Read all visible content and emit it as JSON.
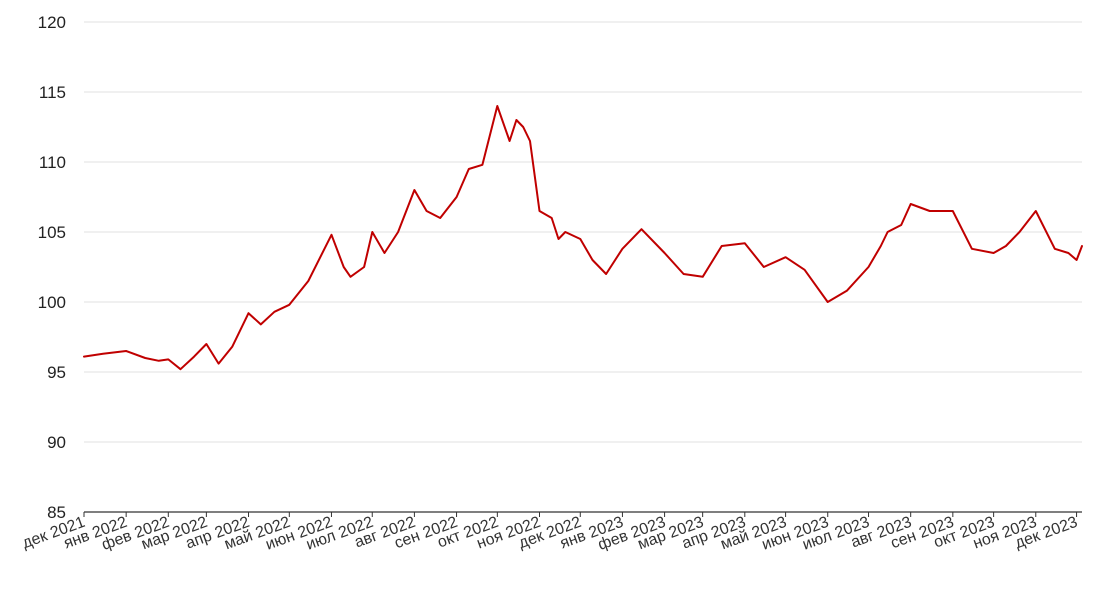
{
  "chart_data": {
    "type": "line",
    "title": "",
    "xlabel": "",
    "ylabel": "",
    "ylim": [
      85,
      120
    ],
    "y_ticks": [
      85,
      90,
      95,
      100,
      105,
      110,
      115,
      120
    ],
    "x_tick_labels": [
      "дек 2021",
      "янв 2022",
      "фев 2022",
      "мар 2022",
      "апр 2022",
      "май 2022",
      "июн 2022",
      "июл 2022",
      "авг 2022",
      "сен 2022",
      "окт 2022",
      "ноя 2022",
      "дек 2022",
      "янв 2023",
      "фев 2023",
      "мар 2023",
      "апр 2023",
      "май 2023",
      "июн 2023",
      "июл 2023",
      "авг 2023",
      "сен 2023",
      "окт 2023",
      "ноя 2023",
      "дек 2023"
    ],
    "grid": true,
    "legend": "none",
    "line_color": "#c00000",
    "series": [
      {
        "x": [
          "2021-12-01",
          "2021-12-15",
          "2022-01-01",
          "2022-01-15",
          "2022-01-25",
          "2022-02-01",
          "2022-02-10",
          "2022-02-20",
          "2022-03-01",
          "2022-03-10",
          "2022-03-20",
          "2022-04-01",
          "2022-04-10",
          "2022-04-20",
          "2022-05-01",
          "2022-05-15",
          "2022-06-01",
          "2022-06-10",
          "2022-06-15",
          "2022-06-25",
          "2022-07-01",
          "2022-07-10",
          "2022-07-20",
          "2022-08-01",
          "2022-08-10",
          "2022-08-20",
          "2022-09-01",
          "2022-09-10",
          "2022-09-20",
          "2022-10-01",
          "2022-10-10",
          "2022-10-15",
          "2022-10-20",
          "2022-10-25",
          "2022-11-01",
          "2022-11-10",
          "2022-11-15",
          "2022-11-20",
          "2022-12-01",
          "2022-12-10",
          "2022-12-20",
          "2023-01-01",
          "2023-01-15",
          "2023-02-01",
          "2023-02-15",
          "2023-03-01",
          "2023-03-15",
          "2023-04-01",
          "2023-04-15",
          "2023-05-01",
          "2023-05-15",
          "2023-06-01",
          "2023-06-15",
          "2023-07-01",
          "2023-07-10",
          "2023-07-15",
          "2023-07-25",
          "2023-08-01",
          "2023-08-15",
          "2023-09-01",
          "2023-09-15",
          "2023-10-01",
          "2023-10-10",
          "2023-10-20",
          "2023-11-01",
          "2023-11-15",
          "2023-11-25",
          "2023-12-01",
          "2023-12-05"
        ],
        "values": [
          96.1,
          96.3,
          96.5,
          96.0,
          95.8,
          95.9,
          95.2,
          96.1,
          97.0,
          95.6,
          96.8,
          99.2,
          98.4,
          99.3,
          99.8,
          101.5,
          104.8,
          102.5,
          101.8,
          102.5,
          105.0,
          103.5,
          105.0,
          108.0,
          106.5,
          106.0,
          107.5,
          109.5,
          109.8,
          114.0,
          111.5,
          113.0,
          112.5,
          111.5,
          106.5,
          106.0,
          104.5,
          105.0,
          104.5,
          103.0,
          102.0,
          103.8,
          105.2,
          103.5,
          102.0,
          101.8,
          104.0,
          104.2,
          102.5,
          103.2,
          102.3,
          100.0,
          100.8,
          102.5,
          104.0,
          105.0,
          105.5,
          107.0,
          106.5,
          106.5,
          103.8,
          103.5,
          104.0,
          105.0,
          106.5,
          103.8,
          103.5,
          103.0,
          104.0
        ]
      }
    ]
  }
}
